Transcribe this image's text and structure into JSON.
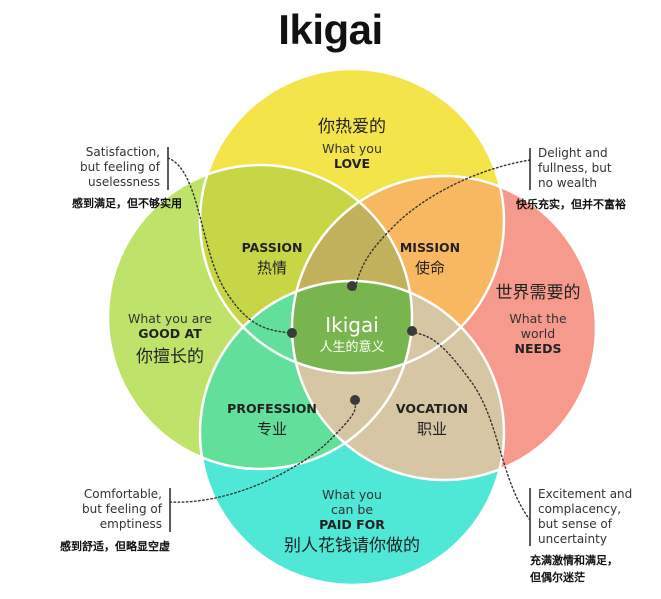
{
  "title": "Ikigai",
  "circles": {
    "love": {
      "zh": "你热爱的",
      "en1": "What you",
      "en2": "LOVE",
      "color": "#f3e44a"
    },
    "good": {
      "zh": "你擅长的",
      "en1": "What you are",
      "en2": "GOOD AT",
      "color": "#bfe36a"
    },
    "needs": {
      "zh": "世界需要的",
      "en1": "What the",
      "en1b": "world",
      "en2": "NEEDS",
      "color": "#f79a8e"
    },
    "paid": {
      "zh": "别人花钱请你做的",
      "en1": "What you",
      "en1b": "can be",
      "en2": "PAID FOR",
      "color": "#4fe7d5"
    }
  },
  "intersections": {
    "passion": {
      "en": "PASSION",
      "zh": "热情",
      "color": "#c6d646"
    },
    "mission": {
      "en": "MISSION",
      "zh": "使命",
      "color": "#f8b862"
    },
    "profession": {
      "en": "PROFESSION",
      "zh": "专业",
      "color": "#62df9a"
    },
    "vocation": {
      "en": "VOCATION",
      "zh": "职业",
      "color": "#d6c6a4"
    },
    "center": {
      "en": "Ikigai",
      "zh": "人生的意义",
      "color": "#79b54e"
    }
  },
  "annotations": {
    "top_left": {
      "lines": [
        "Satisfaction,",
        "but feeling of",
        "uselessness"
      ],
      "zh": "感到满足，但不够实用"
    },
    "top_right": {
      "lines": [
        "Delight and",
        "fullness, but",
        "no wealth"
      ],
      "zh": "快乐充实，但并不富裕"
    },
    "bottom_left": {
      "lines": [
        "Comfortable,",
        "but feeling of",
        "emptiness"
      ],
      "zh": "感到舒适，但略显空虚"
    },
    "bottom_right": {
      "lines": [
        "Excitement and",
        "complacency,",
        "but sense of",
        "uncertainty"
      ],
      "zh1": "充满激情和满足，",
      "zh2": "但偶尔迷茫"
    }
  }
}
